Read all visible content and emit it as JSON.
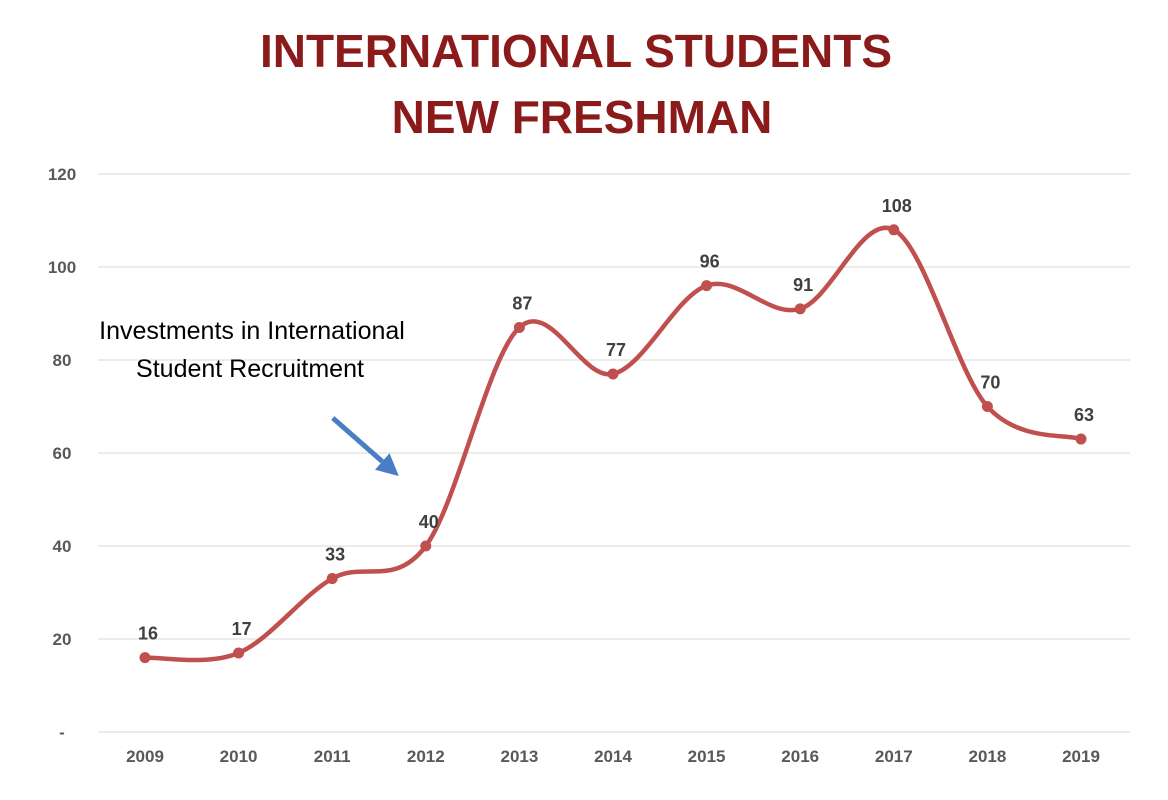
{
  "chart_data": {
    "type": "line",
    "title": [
      "INTERNATIONAL STUDENTS",
      "NEW FRESHMAN"
    ],
    "xlabel": "",
    "ylabel": "",
    "categories": [
      "2009",
      "2010",
      "2011",
      "2012",
      "2013",
      "2014",
      "2015",
      "2016",
      "2017",
      "2018",
      "2019"
    ],
    "series": [
      {
        "values": [
          16,
          17,
          33,
          40,
          87,
          77,
          96,
          91,
          108,
          70,
          63
        ]
      }
    ],
    "data_labels": [
      "16",
      "17",
      "33",
      "40",
      "87",
      "77",
      "96",
      "91",
      "108",
      "70",
      "63"
    ],
    "ylim": [
      0,
      120
    ],
    "y_ticks": [
      0,
      20,
      40,
      60,
      80,
      100,
      120
    ],
    "y_tick_labels": [
      "-",
      "20",
      "40",
      "60",
      "80",
      "100",
      "120"
    ],
    "grid": true,
    "smooth": true,
    "annotation": {
      "lines": [
        "Investments in International",
        "Student Recruitment"
      ],
      "arrow_target_category": "2012"
    },
    "colors": {
      "title": "#8b1a1a",
      "line": "#c0504d",
      "arrow": "#4a7dc4",
      "grid": "#d9d9d9",
      "tick_text": "#595959",
      "label_text": "#404040"
    }
  }
}
